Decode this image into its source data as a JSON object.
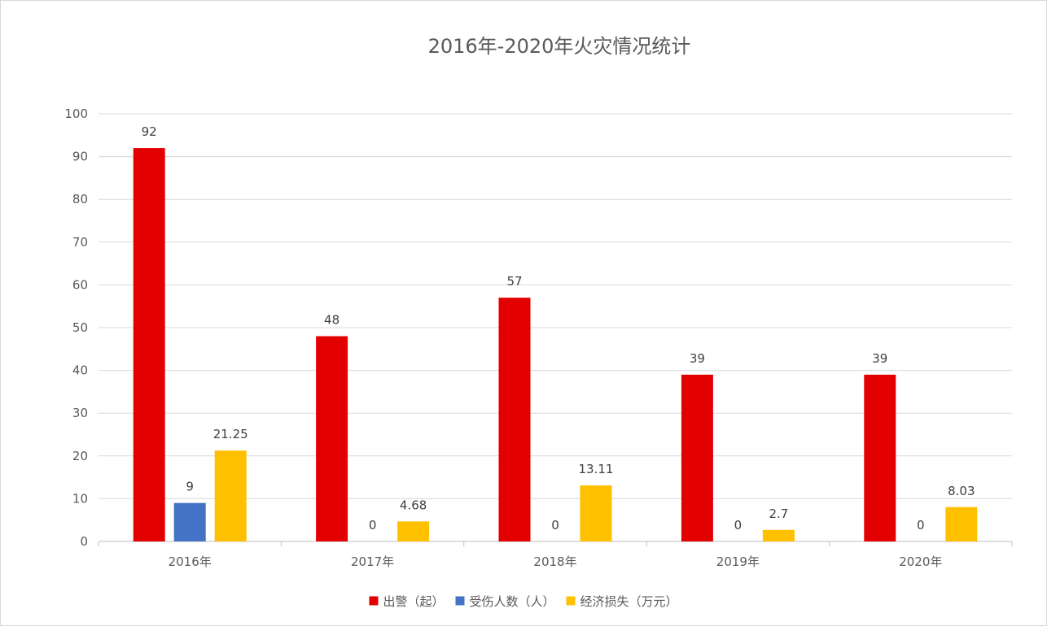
{
  "chart_data": {
    "type": "bar",
    "title": "2016年-2020年火灾情况统计",
    "xlabel": "",
    "ylabel": "",
    "ylim": [
      0,
      100
    ],
    "yticks": [
      0,
      10,
      20,
      30,
      40,
      50,
      60,
      70,
      80,
      90,
      100
    ],
    "categories": [
      "2016年",
      "2017年",
      "2018年",
      "2019年",
      "2020年"
    ],
    "series": [
      {
        "name": "出警（起）",
        "color": "#e30000",
        "values": [
          92,
          48,
          57,
          39,
          39
        ],
        "labels": [
          "92",
          "48",
          "57",
          "39",
          "39"
        ]
      },
      {
        "name": "受伤人数（人）",
        "color": "#4472c4",
        "values": [
          9,
          0,
          0,
          0,
          0
        ],
        "labels": [
          "9",
          "0",
          "0",
          "0",
          "0"
        ]
      },
      {
        "name": "经济损失（万元）",
        "color": "#ffc000",
        "values": [
          21.25,
          4.68,
          13.11,
          2.7,
          8.03
        ],
        "labels": [
          "21.25",
          "4.68",
          "13.11",
          "2.7",
          "8.03"
        ]
      }
    ],
    "grid": true,
    "legend_position": "bottom",
    "data_labels": true
  }
}
